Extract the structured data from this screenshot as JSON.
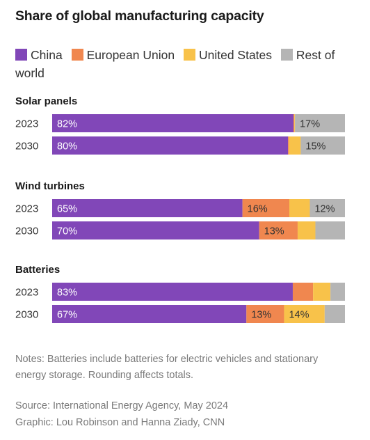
{
  "chart_data": {
    "type": "bar",
    "stacked": true,
    "orientation": "horizontal",
    "title": "Share of global manufacturing capacity",
    "xlim": [
      0,
      100
    ],
    "legend_position": "top",
    "series": [
      {
        "name": "China",
        "color": "#8147b8"
      },
      {
        "name": "European Union",
        "color": "#f0874f"
      },
      {
        "name": "United States",
        "color": "#f8c24a"
      },
      {
        "name": "Rest of world",
        "color": "#b5b5b5"
      }
    ],
    "groups": [
      {
        "name": "Solar panels",
        "rows": [
          {
            "year": "2023",
            "values": [
              82,
              0.3,
              0.2,
              17
            ],
            "labels": [
              "82%",
              "",
              "",
              "17%"
            ]
          },
          {
            "year": "2030",
            "values": [
              80,
              0.3,
              4,
              15
            ],
            "labels": [
              "80%",
              "",
              "",
              "15%"
            ]
          }
        ]
      },
      {
        "name": "Wind turbines",
        "rows": [
          {
            "year": "2023",
            "values": [
              65,
              16,
              7,
              12
            ],
            "labels": [
              "65%",
              "16%",
              "",
              "12%"
            ]
          },
          {
            "year": "2030",
            "values": [
              70,
              13,
              6,
              10
            ],
            "labels": [
              "70%",
              "13%",
              "",
              ""
            ]
          }
        ]
      },
      {
        "name": "Batteries",
        "rows": [
          {
            "year": "2023",
            "values": [
              83,
              7,
              6,
              5
            ],
            "labels": [
              "83%",
              "",
              "",
              ""
            ]
          },
          {
            "year": "2030",
            "values": [
              67,
              13,
              14,
              7
            ],
            "labels": [
              "67%",
              "13%",
              "14%",
              ""
            ]
          }
        ]
      }
    ]
  },
  "notes": "Notes: Batteries include batteries for electric vehicles and stationary energy storage. Rounding affects totals.",
  "source_line": "Source: International Energy Agency, May 2024",
  "credit_line": "Graphic: Lou Robinson and Hanna Ziady, CNN"
}
